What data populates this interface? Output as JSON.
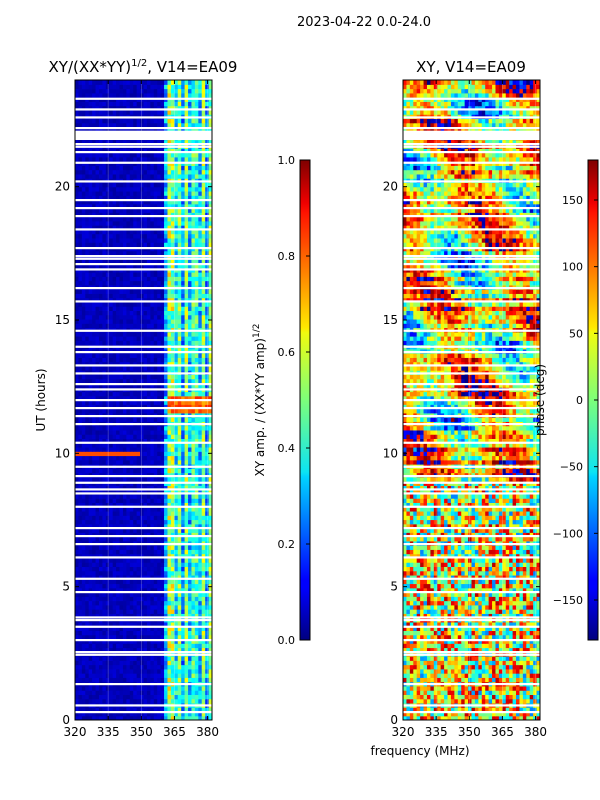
{
  "chart_data": [
    {
      "type": "heatmap",
      "suptitle": "2023-04-22 0.0-24.0",
      "title_main": "XY/(XX*YY)",
      "title_sup": "1/2",
      "title_rest": ", V14=EA09",
      "xlabel": "",
      "ylabel": "UT (hours)",
      "xlim": [
        320,
        382
      ],
      "ylim": [
        0,
        24
      ],
      "xticks": [
        320,
        335,
        350,
        365,
        380
      ],
      "yticks": [
        0,
        5,
        10,
        15,
        20
      ],
      "colorbar": {
        "label_main": "XY amp. / (XX*YY amp)",
        "label_sup": "1/2",
        "range": [
          0.0,
          1.0
        ],
        "ticks": [
          "0.0",
          "0.2",
          "0.4",
          "0.6",
          "0.8",
          "1.0"
        ],
        "tick_values": [
          0.0,
          0.2,
          0.4,
          0.6,
          0.8,
          1.0
        ]
      }
    },
    {
      "type": "heatmap",
      "title": "XY, V14=EA09",
      "xlabel": "frequency (MHz)",
      "ylabel": "",
      "xlim": [
        320,
        382
      ],
      "ylim": [
        0,
        24
      ],
      "xticks": [
        320,
        335,
        350,
        365,
        380
      ],
      "yticks": [
        0,
        5,
        10,
        15,
        20
      ],
      "colorbar": {
        "label": "phase (deg)",
        "range": [
          -180,
          180
        ],
        "ticks": [
          "−150",
          "−100",
          "−50",
          "0",
          "50",
          "100",
          "150"
        ],
        "tick_values": [
          -150,
          -100,
          -50,
          0,
          50,
          100,
          150
        ]
      }
    }
  ],
  "flagged_hours": [
    0.3,
    0.55,
    1.35,
    2.45,
    2.55,
    3.0,
    3.5,
    3.75,
    3.85,
    4.8,
    5.3,
    6.1,
    6.6,
    6.9,
    7.2,
    8.0,
    8.5,
    8.65,
    8.9,
    9.15,
    9.5,
    10.4,
    11.1,
    11.4,
    11.7,
    12.0,
    12.4,
    12.6,
    13.0,
    13.3,
    13.8,
    14.0,
    14.6,
    15.7,
    16.2,
    16.9,
    17.1,
    17.3,
    17.4,
    17.7,
    18.4,
    18.9,
    19.2,
    19.5,
    20.2,
    20.9,
    21.3,
    21.5,
    21.6,
    22.2,
    22.6,
    22.9,
    23.3
  ],
  "flagged_block": [
    21.75,
    22.1
  ]
}
